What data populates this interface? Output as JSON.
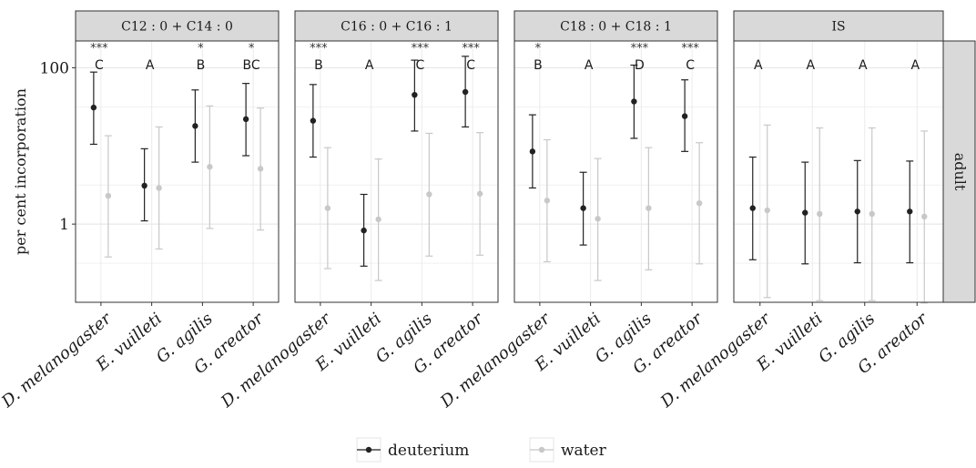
{
  "chart_data": {
    "type": "scatter",
    "subtype": "point-range with error bars, faceted",
    "ylabel": "per cent incorporation",
    "y_scale": "log10",
    "ylim": [
      0.1,
      220
    ],
    "y_ticks": [
      1,
      100
    ],
    "y_tick_labels": [
      "1",
      "100"
    ],
    "grid": true,
    "row_facet": "adult",
    "categories": [
      "D. melanogaster",
      "E. vuilleti",
      "G. agilis",
      "G. areator"
    ],
    "legend": {
      "position": "bottom",
      "entries": [
        {
          "label": "deuterium",
          "color": "#222222"
        },
        {
          "label": "water",
          "color": "#c8c8c8"
        }
      ]
    },
    "panels": [
      {
        "title": "C12 : 0 + C14 : 0",
        "letters": [
          "C",
          "A",
          "B",
          "BC"
        ],
        "stars": [
          "***",
          "",
          "*",
          "*"
        ],
        "series": [
          {
            "name": "deuterium",
            "mean": [
              31,
              3.1,
              18,
              22
            ],
            "lower": [
              10.5,
              1.1,
              6.2,
              7.5
            ],
            "upper": [
              88,
              9.2,
              52,
              63
            ]
          },
          {
            "name": "water",
            "mean": [
              2.3,
              2.9,
              5.4,
              5.1
            ],
            "lower": [
              0.38,
              0.48,
              0.88,
              0.84
            ],
            "upper": [
              13.5,
              17.5,
              32.5,
              30.5
            ]
          }
        ]
      },
      {
        "title": "C16 : 0 + C16 : 1",
        "letters": [
          "B",
          "A",
          "C",
          "C"
        ],
        "stars": [
          "***",
          "",
          "***",
          "***"
        ],
        "series": [
          {
            "name": "deuterium",
            "mean": [
              21,
              0.83,
              45,
              49
            ],
            "lower": [
              7.2,
              0.29,
              15.5,
              17.5
            ],
            "upper": [
              61,
              2.4,
              125,
              140
            ]
          },
          {
            "name": "water",
            "mean": [
              1.6,
              1.15,
              2.4,
              2.45
            ],
            "lower": [
              0.27,
              0.19,
              0.39,
              0.4
            ],
            "upper": [
              9.5,
              6.8,
              14.5,
              14.8
            ]
          }
        ]
      },
      {
        "title": "C18 : 0 + C18 : 1",
        "letters": [
          "B",
          "A",
          "D",
          "C"
        ],
        "stars": [
          "*",
          "",
          "***",
          "***"
        ],
        "series": [
          {
            "name": "deuterium",
            "mean": [
              8.5,
              1.6,
              37,
              24
            ],
            "lower": [
              2.9,
              0.54,
              12.5,
              8.5
            ],
            "upper": [
              25,
              4.6,
              108,
              70
            ]
          },
          {
            "name": "water",
            "mean": [
              2.0,
              1.17,
              1.6,
              1.85
            ],
            "lower": [
              0.33,
              0.19,
              0.26,
              0.31
            ],
            "upper": [
              12,
              6.9,
              9.5,
              11
            ]
          }
        ]
      },
      {
        "title": "IS",
        "letters": [
          "A",
          "A",
          "A",
          "A"
        ],
        "stars": [
          "",
          "",
          "",
          ""
        ],
        "series": [
          {
            "name": "deuterium",
            "mean": [
              1.6,
              1.4,
              1.45,
              1.45
            ],
            "lower": [
              0.35,
              0.31,
              0.32,
              0.32
            ],
            "upper": [
              7.2,
              6.2,
              6.5,
              6.4
            ]
          },
          {
            "name": "water",
            "mean": [
              1.5,
              1.35,
              1.35,
              1.25
            ],
            "lower": [
              0.115,
              0.105,
              0.105,
              0.098
            ],
            "upper": [
              18.5,
              17,
              17,
              15.5
            ]
          }
        ]
      }
    ]
  }
}
